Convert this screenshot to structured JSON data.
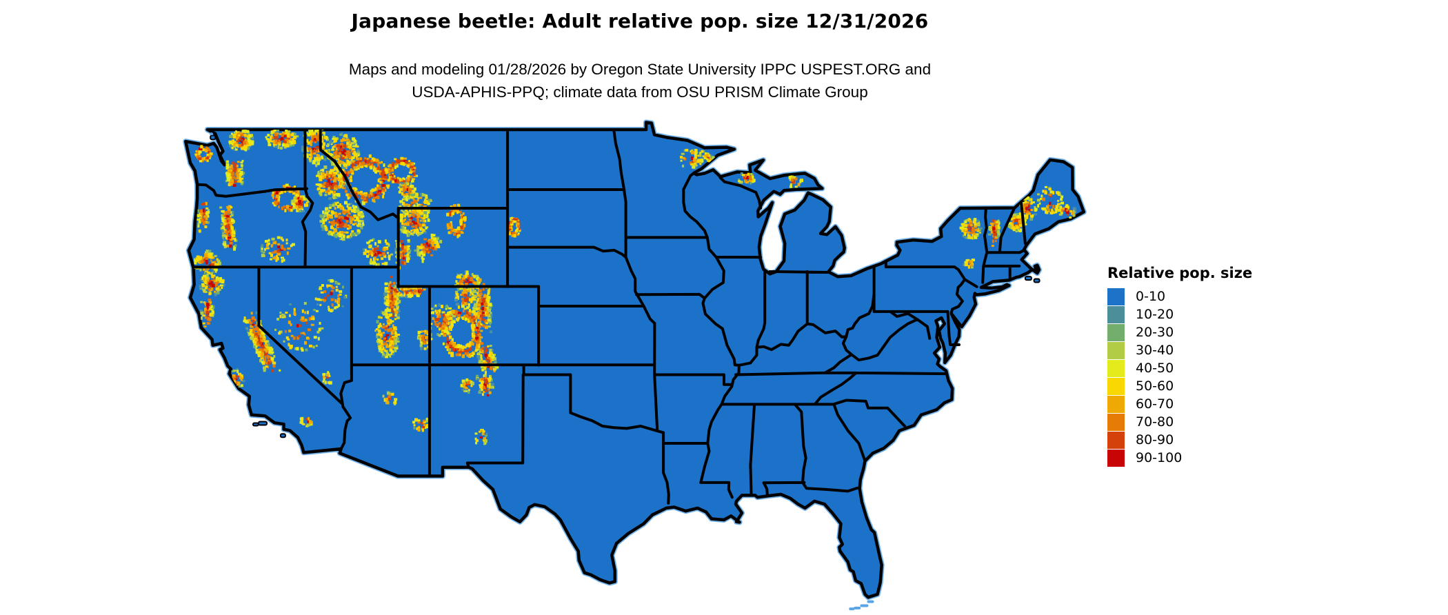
{
  "header": {
    "title": "Japanese beetle: Adult relative pop. size 12/31/2026",
    "subtitle_line1": "Maps and modeling 01/28/2026 by Oregon State University IPPC USPEST.ORG and",
    "subtitle_line2": "USDA-APHIS-PPQ; climate data from OSU PRISM Climate Group"
  },
  "legend": {
    "title": "Relative pop. size",
    "items": [
      {
        "label": "0-10",
        "color": "#1D73C8"
      },
      {
        "label": "10-20",
        "color": "#4C8F9B"
      },
      {
        "label": "20-30",
        "color": "#74AE6C"
      },
      {
        "label": "30-40",
        "color": "#B2CD45"
      },
      {
        "label": "40-50",
        "color": "#E3EB1C"
      },
      {
        "label": "50-60",
        "color": "#F8D800"
      },
      {
        "label": "60-70",
        "color": "#EEA904"
      },
      {
        "label": "70-80",
        "color": "#E67C06"
      },
      {
        "label": "80-90",
        "color": "#D5410A"
      },
      {
        "label": "90-100",
        "color": "#C80404"
      }
    ]
  },
  "map": {
    "land_color": "#1B72C8",
    "border_color": "#000000",
    "water_color": "#FFFFFF",
    "coast_shallow_color": "#59A5E6",
    "hotspot_palette": [
      "#C80404",
      "#D5410A",
      "#E67C06",
      "#EEA904",
      "#F8D800",
      "#E3EB1C",
      "#B2CD45",
      "#74AE6C",
      "#4D909F"
    ],
    "hotspot_regions": [
      {
        "name": "olympic-mountains",
        "lon": -123.55,
        "lat": 47.75,
        "rx": 0.5,
        "ry": 0.38,
        "count": 65,
        "shape": "ring",
        "angle": 0
      },
      {
        "name": "north-cascades",
        "lon": -121.15,
        "lat": 48.45,
        "rx": 0.8,
        "ry": 0.55,
        "count": 130,
        "shape": "blob",
        "angle": 0
      },
      {
        "name": "south-cascades",
        "lon": -121.55,
        "lat": 46.7,
        "rx": 0.55,
        "ry": 0.95,
        "count": 115,
        "shape": "band",
        "angle": 0
      },
      {
        "name": "northeast-washington",
        "lon": -118.55,
        "lat": 48.55,
        "rx": 1.05,
        "ry": 0.5,
        "count": 100,
        "shape": "blob",
        "angle": 0
      },
      {
        "name": "blue-mountains",
        "lon": -118.2,
        "lat": 45.5,
        "rx": 0.95,
        "ry": 0.65,
        "count": 105,
        "shape": "ring",
        "angle": 0
      },
      {
        "name": "oregon-cascades",
        "lon": -121.95,
        "lat": 43.95,
        "rx": 0.4,
        "ry": 1.5,
        "count": 140,
        "shape": "band",
        "angle": -6
      },
      {
        "name": "wallowa-mountains",
        "lon": -117.35,
        "lat": 45.25,
        "rx": 0.55,
        "ry": 0.45,
        "count": 60,
        "shape": "blob",
        "angle": 0
      },
      {
        "name": "klamath-siskiyou",
        "lon": -123.3,
        "lat": 42.2,
        "rx": 0.85,
        "ry": 0.6,
        "count": 85,
        "shape": "blob",
        "angle": 0
      },
      {
        "name": "oregon-coast-range",
        "lon": -123.55,
        "lat": 44.6,
        "rx": 0.35,
        "ry": 0.95,
        "count": 45,
        "shape": "band",
        "angle": 0
      },
      {
        "name": "steens-high-desert",
        "lon": -118.8,
        "lat": 42.9,
        "rx": 1.1,
        "ry": 0.65,
        "count": 55,
        "shape": "blob",
        "angle": 0
      },
      {
        "name": "sierra-nevada",
        "lon": -119.85,
        "lat": 38.1,
        "rx": 0.5,
        "ry": 2.0,
        "count": 210,
        "shape": "band",
        "angle": -22
      },
      {
        "name": "klamath-trinity",
        "lon": -123.0,
        "lat": 41.15,
        "rx": 0.8,
        "ry": 0.6,
        "count": 95,
        "shape": "blob",
        "angle": 0
      },
      {
        "name": "north-coast-range",
        "lon": -123.3,
        "lat": 39.7,
        "rx": 0.4,
        "ry": 0.85,
        "count": 50,
        "shape": "band",
        "angle": 0
      },
      {
        "name": "san-bernardino",
        "lon": -116.9,
        "lat": 34.15,
        "rx": 0.45,
        "ry": 0.28,
        "count": 18,
        "shape": "blob",
        "angle": 0
      },
      {
        "name": "central-coast-range",
        "lon": -121.4,
        "lat": 36.3,
        "rx": 0.45,
        "ry": 0.5,
        "count": 28,
        "shape": "blob",
        "angle": 0
      },
      {
        "name": "central-nevada-ranges",
        "lon": -117.4,
        "lat": 38.9,
        "rx": 1.6,
        "ry": 1.3,
        "count": 70,
        "shape": "blob",
        "angle": 0
      },
      {
        "name": "ruby-mountains",
        "lon": -115.4,
        "lat": 40.5,
        "rx": 1.0,
        "ry": 0.85,
        "count": 55,
        "shape": "blob",
        "angle": 0
      },
      {
        "name": "spring-mountains",
        "lon": -115.6,
        "lat": 36.3,
        "rx": 0.35,
        "ry": 0.3,
        "count": 15,
        "shape": "blob",
        "angle": 0
      },
      {
        "name": "idaho-panhandle",
        "lon": -116.35,
        "lat": 48.2,
        "rx": 0.85,
        "ry": 1.05,
        "count": 150,
        "shape": "blob",
        "angle": 0
      },
      {
        "name": "clearwater-bitterroot",
        "lon": -115.4,
        "lat": 46.3,
        "rx": 0.95,
        "ry": 0.85,
        "count": 140,
        "shape": "blob",
        "angle": 0
      },
      {
        "name": "central-idaho-sawtooth",
        "lon": -114.65,
        "lat": 44.35,
        "rx": 1.4,
        "ry": 0.95,
        "count": 230,
        "shape": "blob",
        "angle": 0
      },
      {
        "name": "southeast-idaho",
        "lon": -112.35,
        "lat": 42.75,
        "rx": 0.95,
        "ry": 0.7,
        "count": 80,
        "shape": "blob",
        "angle": 0
      },
      {
        "name": "northwest-montana",
        "lon": -114.6,
        "lat": 47.9,
        "rx": 1.05,
        "ry": 0.9,
        "count": 160,
        "shape": "blob",
        "angle": 0
      },
      {
        "name": "western-montana-rockies",
        "lon": -113.2,
        "lat": 46.45,
        "rx": 1.6,
        "ry": 1.2,
        "count": 240,
        "shape": "ring",
        "angle": 0
      },
      {
        "name": "little-belt-mountains",
        "lon": -110.8,
        "lat": 46.85,
        "rx": 0.95,
        "ry": 0.7,
        "count": 115,
        "shape": "ring",
        "angle": 0
      },
      {
        "name": "crazy-bridger",
        "lon": -110.5,
        "lat": 45.9,
        "rx": 0.55,
        "ry": 0.45,
        "count": 55,
        "shape": "blob",
        "angle": 0
      },
      {
        "name": "beartooth-absaroka",
        "lon": -109.9,
        "lat": 45.15,
        "rx": 1.05,
        "ry": 0.6,
        "count": 95,
        "shape": "blob",
        "angle": 0
      },
      {
        "name": "yellowstone-absaroka",
        "lon": -110.05,
        "lat": 44.35,
        "rx": 0.95,
        "ry": 0.85,
        "count": 155,
        "shape": "blob",
        "angle": 0
      },
      {
        "name": "wind-river-range",
        "lon": -109.15,
        "lat": 43.05,
        "rx": 0.85,
        "ry": 0.6,
        "count": 85,
        "shape": "band",
        "angle": -35
      },
      {
        "name": "bighorn-mountains",
        "lon": -107.35,
        "lat": 44.35,
        "rx": 0.6,
        "ry": 0.85,
        "count": 95,
        "shape": "ring",
        "angle": 0
      },
      {
        "name": "salt-river-range",
        "lon": -110.75,
        "lat": 42.7,
        "rx": 0.45,
        "ry": 0.85,
        "count": 75,
        "shape": "band",
        "angle": 0
      },
      {
        "name": "medicine-bow",
        "lon": -106.65,
        "lat": 41.25,
        "rx": 0.85,
        "ry": 0.5,
        "count": 70,
        "shape": "blob",
        "angle": 0
      },
      {
        "name": "wasatch-range",
        "lon": -111.45,
        "lat": 40.25,
        "rx": 0.45,
        "ry": 1.35,
        "count": 140,
        "shape": "band",
        "angle": 0
      },
      {
        "name": "uinta-mountains",
        "lon": -110.45,
        "lat": 40.75,
        "rx": 0.35,
        "ry": 0.95,
        "count": 85,
        "shape": "band",
        "angle": 90
      },
      {
        "name": "central-utah-plateaus",
        "lon": -111.75,
        "lat": 38.6,
        "rx": 0.75,
        "ry": 1.25,
        "count": 150,
        "shape": "blob",
        "angle": 0
      },
      {
        "name": "la-sal-abajo",
        "lon": -109.35,
        "lat": 38.35,
        "rx": 0.45,
        "ry": 0.65,
        "count": 40,
        "shape": "blob",
        "angle": 0
      },
      {
        "name": "front-range",
        "lon": -105.65,
        "lat": 39.9,
        "rx": 0.55,
        "ry": 1.5,
        "count": 160,
        "shape": "band",
        "angle": 0
      },
      {
        "name": "sawatch-san-juan",
        "lon": -106.95,
        "lat": 38.65,
        "rx": 1.3,
        "ry": 1.3,
        "count": 260,
        "shape": "ring",
        "angle": 0
      },
      {
        "name": "park-gore-range",
        "lon": -106.75,
        "lat": 40.45,
        "rx": 0.65,
        "ry": 0.6,
        "count": 70,
        "shape": "blob",
        "angle": 0
      },
      {
        "name": "sangre-de-cristo",
        "lon": -105.35,
        "lat": 37.3,
        "rx": 0.5,
        "ry": 1.15,
        "count": 95,
        "shape": "band",
        "angle": -15
      },
      {
        "name": "west-colorado-mesas",
        "lon": -108.3,
        "lat": 39.3,
        "rx": 0.85,
        "ry": 0.8,
        "count": 85,
        "shape": "blob",
        "angle": 0
      },
      {
        "name": "northern-new-mexico",
        "lon": -105.45,
        "lat": 35.95,
        "rx": 0.45,
        "ry": 0.75,
        "count": 55,
        "shape": "band",
        "angle": -10
      },
      {
        "name": "jemez-mountains",
        "lon": -106.6,
        "lat": 35.95,
        "rx": 0.38,
        "ry": 0.35,
        "count": 25,
        "shape": "blob",
        "angle": 0
      },
      {
        "name": "mogollon-rim",
        "lon": -111.6,
        "lat": 35.25,
        "rx": 0.5,
        "ry": 0.35,
        "count": 22,
        "shape": "blob",
        "angle": 0
      },
      {
        "name": "white-mountains-az",
        "lon": -109.55,
        "lat": 33.95,
        "rx": 0.55,
        "ry": 0.4,
        "count": 26,
        "shape": "blob",
        "angle": 0
      },
      {
        "name": "sacramento-mountains",
        "lon": -105.75,
        "lat": 33.3,
        "rx": 0.4,
        "ry": 0.5,
        "count": 20,
        "shape": "blob",
        "angle": 0
      },
      {
        "name": "black-hills",
        "lon": -103.6,
        "lat": 44.05,
        "rx": 0.38,
        "ry": 0.5,
        "count": 48,
        "shape": "ring",
        "angle": 0
      },
      {
        "name": "lake-superior-north-shore",
        "lon": -90.95,
        "lat": 47.45,
        "rx": 0.18,
        "ry": 1.05,
        "count": 60,
        "shape": "band",
        "angle": -55
      },
      {
        "name": "iron-range",
        "lon": -92.3,
        "lat": 47.5,
        "rx": 0.8,
        "ry": 0.5,
        "count": 40,
        "shape": "blob",
        "angle": 0
      },
      {
        "name": "porcupine-mountains",
        "lon": -88.65,
        "lat": 46.5,
        "rx": 0.6,
        "ry": 0.3,
        "count": 30,
        "shape": "blob",
        "angle": 0
      },
      {
        "name": "eastern-upper-peninsula",
        "lon": -85.6,
        "lat": 46.35,
        "rx": 0.5,
        "ry": 0.3,
        "count": 18,
        "shape": "blob",
        "angle": 0
      },
      {
        "name": "adirondacks",
        "lon": -74.3,
        "lat": 43.95,
        "rx": 0.65,
        "ry": 0.55,
        "count": 85,
        "shape": "blob",
        "angle": 0
      },
      {
        "name": "catskills",
        "lon": -74.4,
        "lat": 42.15,
        "rx": 0.35,
        "ry": 0.28,
        "count": 20,
        "shape": "blob",
        "angle": 0
      },
      {
        "name": "green-mountains",
        "lon": -72.8,
        "lat": 43.9,
        "rx": 0.3,
        "ry": 0.95,
        "count": 55,
        "shape": "band",
        "angle": 0
      },
      {
        "name": "white-mountains-nh",
        "lon": -71.35,
        "lat": 44.25,
        "rx": 0.55,
        "ry": 0.45,
        "count": 75,
        "shape": "blob",
        "angle": 0
      },
      {
        "name": "western-maine",
        "lon": -70.65,
        "lat": 44.95,
        "rx": 0.55,
        "ry": 0.6,
        "count": 60,
        "shape": "blob",
        "angle": 0
      },
      {
        "name": "interior-maine",
        "lon": -69.25,
        "lat": 45.35,
        "rx": 0.85,
        "ry": 0.75,
        "count": 55,
        "shape": "blob",
        "angle": 0
      },
      {
        "name": "downeast-maine",
        "lon": -68.15,
        "lat": 44.8,
        "rx": 0.6,
        "ry": 0.35,
        "count": 28,
        "shape": "blob",
        "angle": 0
      }
    ]
  }
}
